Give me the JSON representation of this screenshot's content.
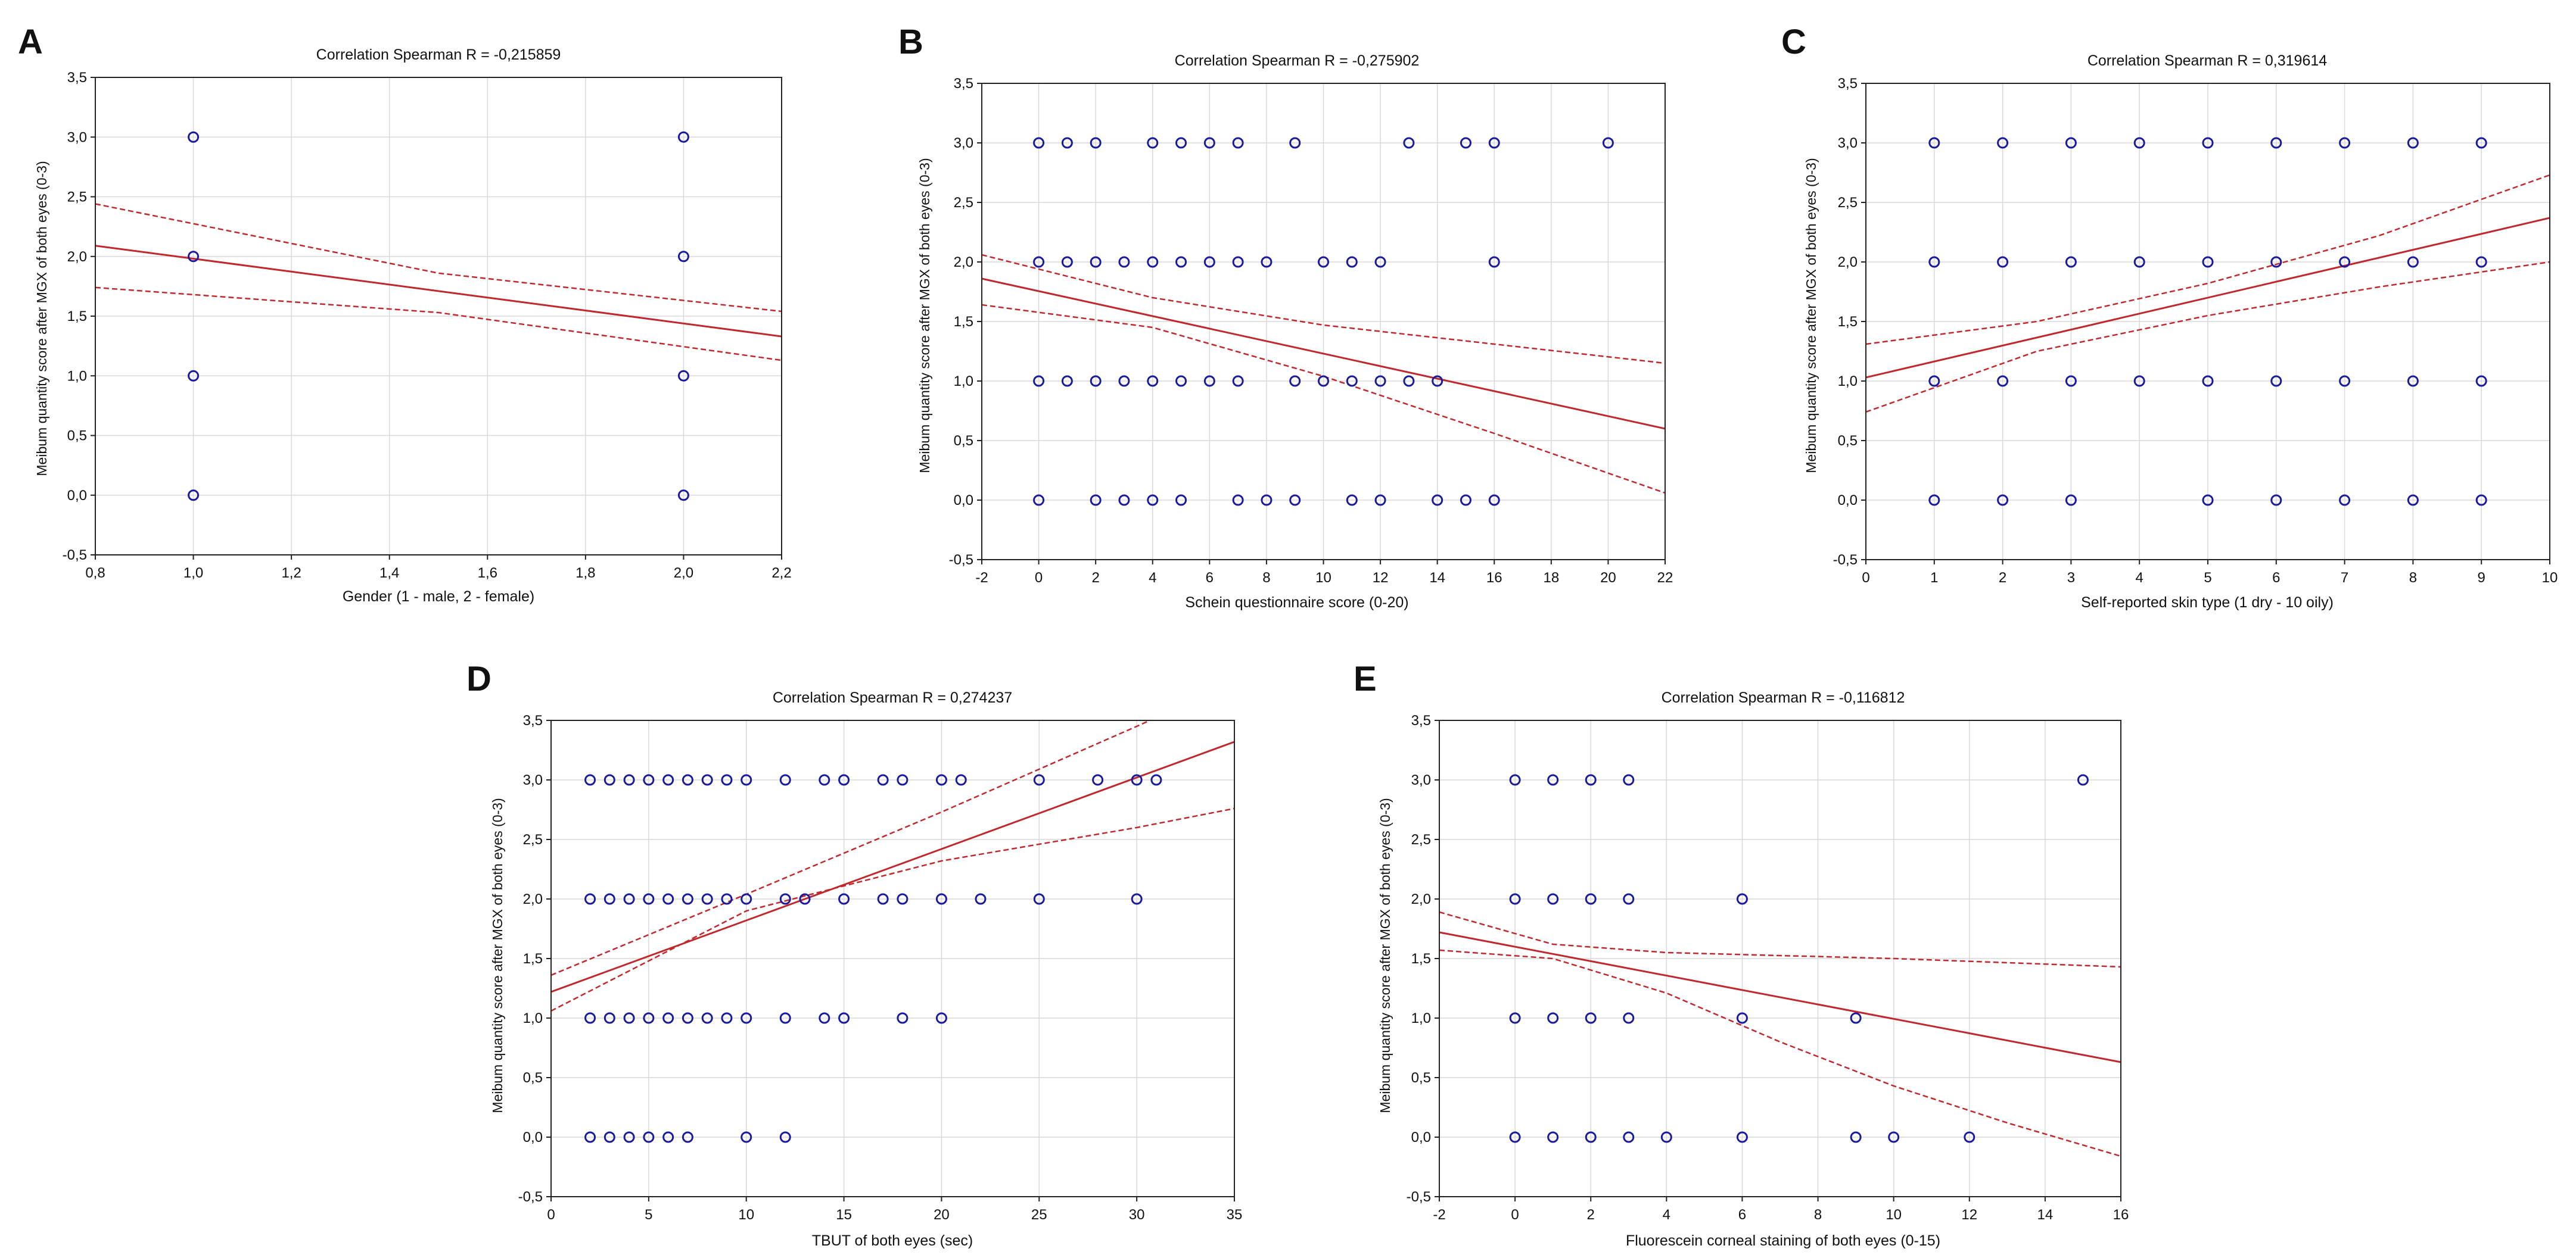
{
  "y_axis_label": "Meibum quantity score after MGX of both eyes (0-3)",
  "colors": {
    "points": "#1a1a9e",
    "fit_line": "#c0282d",
    "confidence_band": "#c0282d",
    "grid": "#d9d9d9",
    "axis": "#222222",
    "text": "#111111"
  },
  "chart_data": [
    {
      "panel": "A",
      "type": "scatter",
      "title": "Correlation Spearman R = -0,215859",
      "xlabel": "Gender (1 - male, 2 - female)",
      "ylabel": "Meibum quantity score after MGX of both eyes (0-3)",
      "xlim": [
        0.8,
        2.2
      ],
      "ylim": [
        -0.5,
        3.5
      ],
      "x_ticks": [
        0.8,
        1.0,
        1.2,
        1.4,
        1.6,
        1.8,
        2.0,
        2.2
      ],
      "x_tick_labels": [
        "0,8",
        "1,0",
        "1,2",
        "1,4",
        "1,6",
        "1,8",
        "2,0",
        "2,2"
      ],
      "y_ticks": [
        -0.5,
        0,
        0.5,
        1,
        1.5,
        2,
        2.5,
        3,
        3.5
      ],
      "y_tick_labels": [
        "-0,5",
        "0,0",
        "0,5",
        "1,0",
        "1,5",
        "2,0",
        "2,5",
        "3,0",
        "3,5"
      ],
      "points": [
        [
          1,
          3
        ],
        [
          1,
          2
        ],
        [
          1,
          1
        ],
        [
          1,
          0
        ],
        [
          2,
          3
        ],
        [
          2,
          2
        ],
        [
          2,
          1
        ],
        [
          2,
          0
        ]
      ],
      "fit_line": [
        [
          0.8,
          2.09
        ],
        [
          2.2,
          1.33
        ]
      ],
      "ci_upper": [
        [
          0.8,
          2.44
        ],
        [
          1.5,
          1.86
        ],
        [
          2.2,
          1.54
        ]
      ],
      "ci_lower": [
        [
          0.8,
          1.74
        ],
        [
          1.5,
          1.53
        ],
        [
          2.2,
          1.13
        ]
      ]
    },
    {
      "panel": "B",
      "type": "scatter",
      "title": "Correlation Spearman R = -0,275902",
      "xlabel": "Schein questionnaire score (0-20)",
      "ylabel": "Meibum quantity score after MGX of both eyes (0-3)",
      "xlim": [
        -2,
        22
      ],
      "ylim": [
        -0.5,
        3.5
      ],
      "x_ticks": [
        -2,
        0,
        2,
        4,
        6,
        8,
        10,
        12,
        14,
        16,
        18,
        20,
        22
      ],
      "x_tick_labels": [
        "-2",
        "0",
        "2",
        "4",
        "6",
        "8",
        "10",
        "12",
        "14",
        "16",
        "18",
        "20",
        "22"
      ],
      "y_ticks": [
        -0.5,
        0,
        0.5,
        1,
        1.5,
        2,
        2.5,
        3,
        3.5
      ],
      "y_tick_labels": [
        "-0,5",
        "0,0",
        "0,5",
        "1,0",
        "1,5",
        "2,0",
        "2,5",
        "3,0",
        "3,5"
      ],
      "points": [
        [
          0,
          3
        ],
        [
          1,
          3
        ],
        [
          2,
          3
        ],
        [
          4,
          3
        ],
        [
          5,
          3
        ],
        [
          6,
          3
        ],
        [
          7,
          3
        ],
        [
          9,
          3
        ],
        [
          13,
          3
        ],
        [
          15,
          3
        ],
        [
          16,
          3
        ],
        [
          20,
          3
        ],
        [
          0,
          2
        ],
        [
          1,
          2
        ],
        [
          2,
          2
        ],
        [
          3,
          2
        ],
        [
          4,
          2
        ],
        [
          5,
          2
        ],
        [
          6,
          2
        ],
        [
          7,
          2
        ],
        [
          8,
          2
        ],
        [
          10,
          2
        ],
        [
          11,
          2
        ],
        [
          12,
          2
        ],
        [
          16,
          2
        ],
        [
          0,
          1
        ],
        [
          1,
          1
        ],
        [
          2,
          1
        ],
        [
          3,
          1
        ],
        [
          4,
          1
        ],
        [
          5,
          1
        ],
        [
          6,
          1
        ],
        [
          7,
          1
        ],
        [
          9,
          1
        ],
        [
          10,
          1
        ],
        [
          11,
          1
        ],
        [
          12,
          1
        ],
        [
          13,
          1
        ],
        [
          14,
          1
        ],
        [
          0,
          0
        ],
        [
          2,
          0
        ],
        [
          3,
          0
        ],
        [
          4,
          0
        ],
        [
          5,
          0
        ],
        [
          7,
          0
        ],
        [
          8,
          0
        ],
        [
          9,
          0
        ],
        [
          11,
          0
        ],
        [
          12,
          0
        ],
        [
          14,
          0
        ],
        [
          15,
          0
        ],
        [
          16,
          0
        ]
      ],
      "fit_line": [
        [
          -2,
          1.86
        ],
        [
          22,
          0.6
        ]
      ],
      "ci_upper": [
        [
          -2,
          2.06
        ],
        [
          4,
          1.7
        ],
        [
          10,
          1.47
        ],
        [
          16,
          1.31
        ],
        [
          22,
          1.15
        ]
      ],
      "ci_lower": [
        [
          -2,
          1.64
        ],
        [
          4,
          1.45
        ],
        [
          10,
          1.04
        ],
        [
          16,
          0.56
        ],
        [
          22,
          0.06
        ]
      ]
    },
    {
      "panel": "C",
      "type": "scatter",
      "title": "Correlation Spearman R = 0,319614",
      "xlabel": "Self-reported skin type (1 dry - 10 oily)",
      "ylabel": "Meibum quantity score after MGX of both eyes (0-3)",
      "xlim": [
        0,
        10
      ],
      "ylim": [
        -0.5,
        3.5
      ],
      "x_ticks": [
        0,
        1,
        2,
        3,
        4,
        5,
        6,
        7,
        8,
        9,
        10
      ],
      "x_tick_labels": [
        "0",
        "1",
        "2",
        "3",
        "4",
        "5",
        "6",
        "7",
        "8",
        "9",
        "10"
      ],
      "y_ticks": [
        -0.5,
        0,
        0.5,
        1,
        1.5,
        2,
        2.5,
        3,
        3.5
      ],
      "y_tick_labels": [
        "-0,5",
        "0,0",
        "0,5",
        "1,0",
        "1,5",
        "2,0",
        "2,5",
        "3,0",
        "3,5"
      ],
      "points": [
        [
          1,
          3
        ],
        [
          2,
          3
        ],
        [
          3,
          3
        ],
        [
          4,
          3
        ],
        [
          5,
          3
        ],
        [
          6,
          3
        ],
        [
          7,
          3
        ],
        [
          8,
          3
        ],
        [
          9,
          3
        ],
        [
          1,
          2
        ],
        [
          2,
          2
        ],
        [
          3,
          2
        ],
        [
          4,
          2
        ],
        [
          5,
          2
        ],
        [
          6,
          2
        ],
        [
          7,
          2
        ],
        [
          8,
          2
        ],
        [
          9,
          2
        ],
        [
          1,
          1
        ],
        [
          2,
          1
        ],
        [
          3,
          1
        ],
        [
          4,
          1
        ],
        [
          5,
          1
        ],
        [
          6,
          1
        ],
        [
          7,
          1
        ],
        [
          8,
          1
        ],
        [
          9,
          1
        ],
        [
          1,
          0
        ],
        [
          2,
          0
        ],
        [
          3,
          0
        ],
        [
          5,
          0
        ],
        [
          6,
          0
        ],
        [
          7,
          0
        ],
        [
          8,
          0
        ],
        [
          9,
          0
        ]
      ],
      "fit_line": [
        [
          0,
          1.03
        ],
        [
          10,
          2.37
        ]
      ],
      "ci_upper": [
        [
          0,
          1.31
        ],
        [
          2.5,
          1.5
        ],
        [
          5,
          1.82
        ],
        [
          7.5,
          2.22
        ],
        [
          10,
          2.73
        ]
      ],
      "ci_lower": [
        [
          0,
          0.74
        ],
        [
          2.5,
          1.25
        ],
        [
          5,
          1.55
        ],
        [
          7.5,
          1.79
        ],
        [
          10,
          2.0
        ]
      ]
    },
    {
      "panel": "D",
      "type": "scatter",
      "title": "Correlation Spearman R = 0,274237",
      "xlabel": "TBUT of both eyes (sec)",
      "ylabel": "Meibum quantity score after MGX of both eyes (0-3)",
      "xlim": [
        0,
        35
      ],
      "ylim": [
        -0.5,
        3.5
      ],
      "x_ticks": [
        0,
        5,
        10,
        15,
        20,
        25,
        30,
        35
      ],
      "x_tick_labels": [
        "0",
        "5",
        "10",
        "15",
        "20",
        "25",
        "30",
        "35"
      ],
      "y_ticks": [
        -0.5,
        0,
        0.5,
        1,
        1.5,
        2,
        2.5,
        3,
        3.5
      ],
      "y_tick_labels": [
        "-0,5",
        "0,0",
        "0,5",
        "1,0",
        "1,5",
        "2,0",
        "2,5",
        "3,0",
        "3,5"
      ],
      "points": [
        [
          2,
          3
        ],
        [
          3,
          3
        ],
        [
          4,
          3
        ],
        [
          5,
          3
        ],
        [
          6,
          3
        ],
        [
          7,
          3
        ],
        [
          8,
          3
        ],
        [
          9,
          3
        ],
        [
          10,
          3
        ],
        [
          12,
          3
        ],
        [
          14,
          3
        ],
        [
          15,
          3
        ],
        [
          17,
          3
        ],
        [
          18,
          3
        ],
        [
          20,
          3
        ],
        [
          21,
          3
        ],
        [
          25,
          3
        ],
        [
          28,
          3
        ],
        [
          30,
          3
        ],
        [
          31,
          3
        ],
        [
          2,
          2
        ],
        [
          3,
          2
        ],
        [
          4,
          2
        ],
        [
          5,
          2
        ],
        [
          6,
          2
        ],
        [
          7,
          2
        ],
        [
          8,
          2
        ],
        [
          9,
          2
        ],
        [
          10,
          2
        ],
        [
          12,
          2
        ],
        [
          13,
          2
        ],
        [
          15,
          2
        ],
        [
          17,
          2
        ],
        [
          18,
          2
        ],
        [
          20,
          2
        ],
        [
          22,
          2
        ],
        [
          25,
          2
        ],
        [
          30,
          2
        ],
        [
          2,
          1
        ],
        [
          3,
          1
        ],
        [
          4,
          1
        ],
        [
          5,
          1
        ],
        [
          6,
          1
        ],
        [
          7,
          1
        ],
        [
          8,
          1
        ],
        [
          9,
          1
        ],
        [
          10,
          1
        ],
        [
          12,
          1
        ],
        [
          14,
          1
        ],
        [
          15,
          1
        ],
        [
          18,
          1
        ],
        [
          20,
          1
        ],
        [
          2,
          0
        ],
        [
          3,
          0
        ],
        [
          4,
          0
        ],
        [
          5,
          0
        ],
        [
          6,
          0
        ],
        [
          7,
          0
        ],
        [
          10,
          0
        ],
        [
          12,
          0
        ]
      ],
      "fit_line": [
        [
          0,
          1.22
        ],
        [
          35,
          3.32
        ]
      ],
      "ci_upper": [
        [
          0,
          1.36
        ],
        [
          10,
          2.04
        ],
        [
          20,
          2.73
        ],
        [
          30,
          3.45
        ],
        [
          35,
          3.82
        ]
      ],
      "ci_lower": [
        [
          0,
          1.06
        ],
        [
          10,
          1.9
        ],
        [
          20,
          2.32
        ],
        [
          30,
          2.6
        ],
        [
          35,
          2.76
        ]
      ]
    },
    {
      "panel": "E",
      "type": "scatter",
      "title": "Correlation Spearman R = -0,116812",
      "xlabel": "Fluorescein corneal staining of both eyes (0-15)",
      "ylabel": "Meibum quantity score after MGX of both eyes (0-3)",
      "xlim": [
        -2,
        16
      ],
      "ylim": [
        -0.5,
        3.5
      ],
      "x_ticks": [
        -2,
        0,
        2,
        4,
        6,
        8,
        10,
        12,
        14,
        16
      ],
      "x_tick_labels": [
        "-2",
        "0",
        "2",
        "4",
        "6",
        "8",
        "10",
        "12",
        "14",
        "16"
      ],
      "y_ticks": [
        -0.5,
        0,
        0.5,
        1,
        1.5,
        2,
        2.5,
        3,
        3.5
      ],
      "y_tick_labels": [
        "-0,5",
        "0,0",
        "0,5",
        "1,0",
        "1,5",
        "2,0",
        "2,5",
        "3,0",
        "3,5"
      ],
      "points": [
        [
          0,
          3
        ],
        [
          1,
          3
        ],
        [
          2,
          3
        ],
        [
          3,
          3
        ],
        [
          15,
          3
        ],
        [
          0,
          2
        ],
        [
          1,
          2
        ],
        [
          2,
          2
        ],
        [
          3,
          2
        ],
        [
          6,
          2
        ],
        [
          0,
          1
        ],
        [
          1,
          1
        ],
        [
          2,
          1
        ],
        [
          3,
          1
        ],
        [
          6,
          1
        ],
        [
          9,
          1
        ],
        [
          0,
          0
        ],
        [
          1,
          0
        ],
        [
          2,
          0
        ],
        [
          3,
          0
        ],
        [
          4,
          0
        ],
        [
          6,
          0
        ],
        [
          9,
          0
        ],
        [
          10,
          0
        ],
        [
          12,
          0
        ]
      ],
      "fit_line": [
        [
          -2,
          1.72
        ],
        [
          16,
          0.63
        ]
      ],
      "ci_upper": [
        [
          -2,
          1.89
        ],
        [
          1,
          1.62
        ],
        [
          4,
          1.55
        ],
        [
          10,
          1.5
        ],
        [
          16,
          1.43
        ]
      ],
      "ci_lower": [
        [
          -2,
          1.57
        ],
        [
          1,
          1.5
        ],
        [
          4,
          1.21
        ],
        [
          7,
          0.8
        ],
        [
          10,
          0.43
        ],
        [
          13,
          0.12
        ],
        [
          16,
          -0.16
        ]
      ]
    }
  ]
}
